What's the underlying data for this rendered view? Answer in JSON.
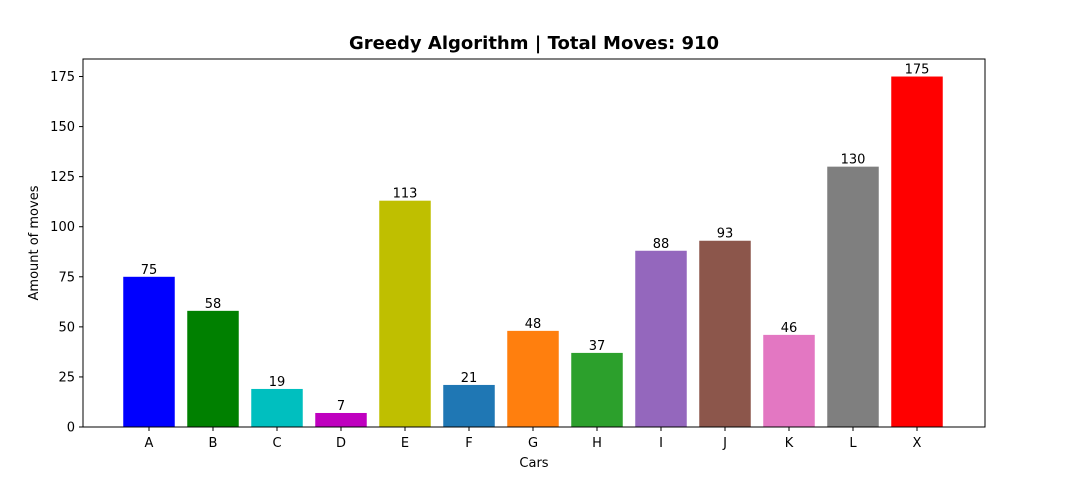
{
  "chart_data": {
    "type": "bar",
    "title": "Greedy Algorithm | Total Moves: 910",
    "xlabel": "Cars",
    "ylabel": "Amount of moves",
    "categories": [
      "A",
      "B",
      "C",
      "D",
      "E",
      "F",
      "G",
      "H",
      "I",
      "J",
      "K",
      "L",
      "X"
    ],
    "values": [
      75,
      58,
      19,
      7,
      113,
      21,
      48,
      37,
      88,
      93,
      46,
      130,
      175
    ],
    "colors": [
      "#0000ff",
      "#008000",
      "#00bfbf",
      "#bf00bf",
      "#bfbf00",
      "#1f77b4",
      "#ff7f0e",
      "#2ca02c",
      "#9467bd",
      "#8c564b",
      "#e377c2",
      "#7f7f7f",
      "#ff0000"
    ],
    "y_ticks": [
      0,
      25,
      50,
      75,
      100,
      125,
      150,
      175
    ],
    "ylim": [
      0,
      183.75
    ],
    "grid": false,
    "legend": "none",
    "show_value_labels": true
  }
}
